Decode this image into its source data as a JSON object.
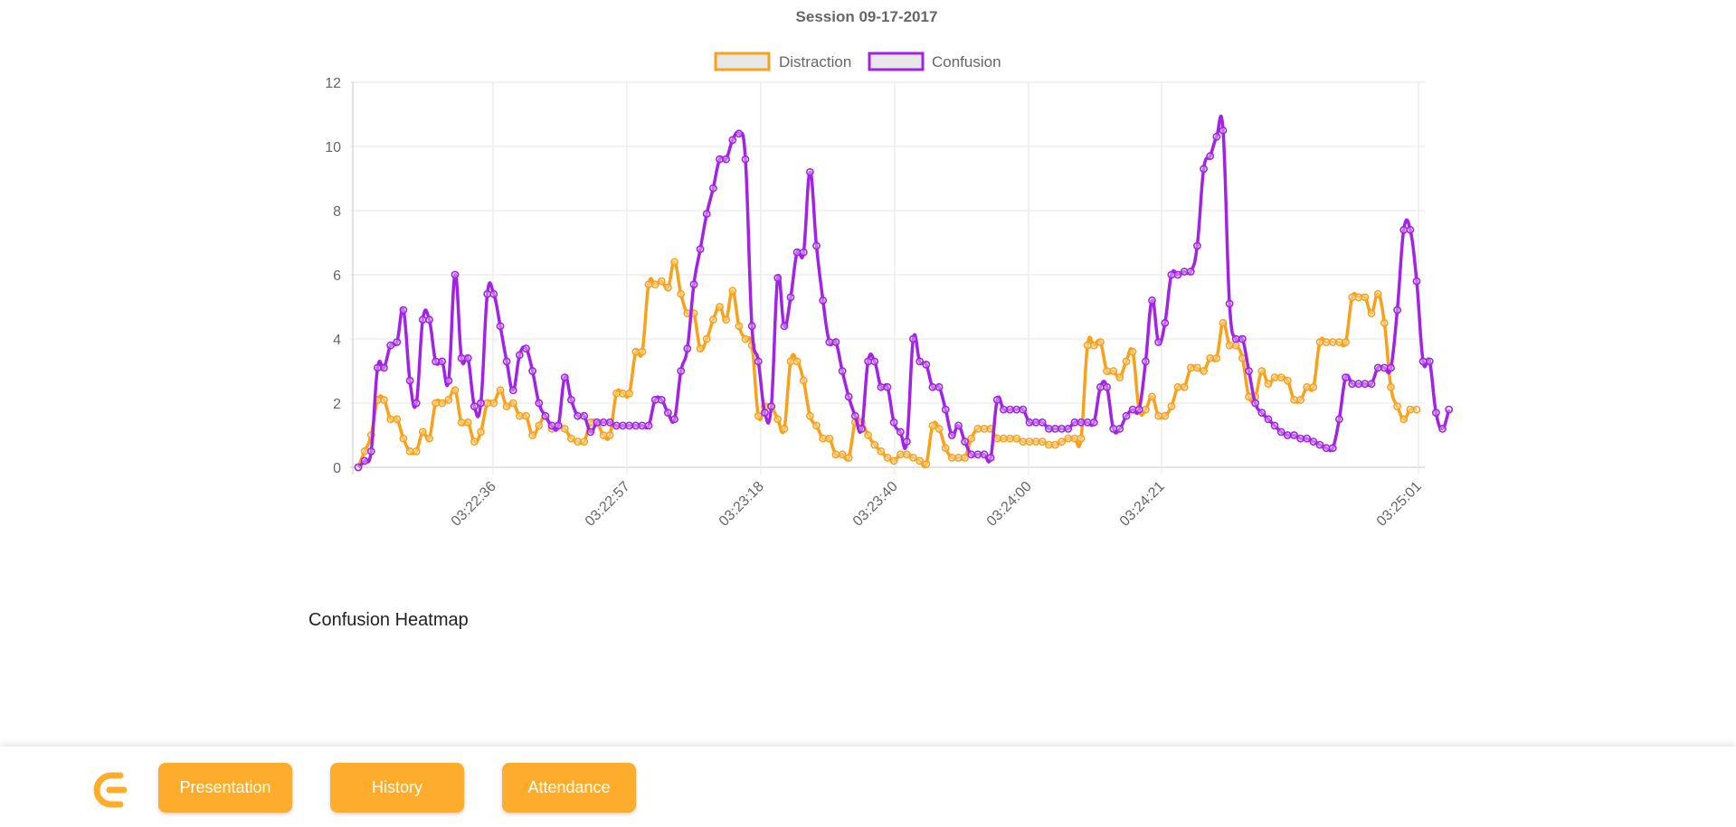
{
  "chart_data": {
    "type": "line",
    "title": "Session 09-17-2017",
    "legend_position": "top",
    "ylim": [
      0,
      12
    ],
    "yticks": [
      "0",
      "2",
      "4",
      "6",
      "8",
      "10",
      "12"
    ],
    "xticks": [
      "03:22:36",
      "03:22:57",
      "03:23:18",
      "03:23:40",
      "03:24:00",
      "03:24:21",
      "03:25:01"
    ],
    "grid": true,
    "series": [
      {
        "name": "Distraction",
        "color": "#f9a11b",
        "values": [
          0,
          0.5,
          1.0,
          2.1,
          2.1,
          1.5,
          1.5,
          0.9,
          0.5,
          0.5,
          1.1,
          0.9,
          2.0,
          2.0,
          2.1,
          2.4,
          1.4,
          1.4,
          0.8,
          1.1,
          2.0,
          2.0,
          2.4,
          1.9,
          2.0,
          1.6,
          1.6,
          1.0,
          1.3,
          1.6,
          1.2,
          1.3,
          1.2,
          0.9,
          0.8,
          0.8,
          1.4,
          1.4,
          1.0,
          1.0,
          2.3,
          2.3,
          2.3,
          3.6,
          3.6,
          5.7,
          5.7,
          5.8,
          5.6,
          6.4,
          5.4,
          4.8,
          4.8,
          3.7,
          4.0,
          4.6,
          5.0,
          4.6,
          5.5,
          4.4,
          4.0,
          3.8,
          1.6,
          1.9,
          1.9,
          1.5,
          1.2,
          3.3,
          3.3,
          2.7,
          1.6,
          1.3,
          0.9,
          0.9,
          0.4,
          0.4,
          0.3,
          1.4,
          1.4,
          1.0,
          0.7,
          0.5,
          0.3,
          0.2,
          0.4,
          0.4,
          0.3,
          0.2,
          0.1,
          1.3,
          1.2,
          0.6,
          0.3,
          0.3,
          0.3,
          0.9,
          1.2,
          1.2,
          1.2,
          0.9,
          0.9,
          0.9,
          0.9,
          0.8,
          0.8,
          0.8,
          0.8,
          0.7,
          0.7,
          0.8,
          0.9,
          0.9,
          0.9,
          3.8,
          3.8,
          3.9,
          3.0,
          3.0,
          2.8,
          3.3,
          3.6,
          1.8,
          1.8,
          2.2,
          1.6,
          1.6,
          1.9,
          2.5,
          2.5,
          3.1,
          3.1,
          3.0,
          3.4,
          3.4,
          4.5,
          3.8,
          3.8,
          3.4,
          2.2,
          2.2,
          3.0,
          2.6,
          2.8,
          2.8,
          2.7,
          2.1,
          2.1,
          2.5,
          2.5,
          3.9,
          3.9,
          3.9,
          3.9,
          3.9,
          5.3,
          5.3,
          5.3,
          4.8,
          5.4,
          4.5,
          2.5,
          1.9,
          1.5,
          1.8,
          1.8
        ]
      },
      {
        "name": "Confusion",
        "color": "#a023e6",
        "values": [
          0,
          0.2,
          0.5,
          3.1,
          3.1,
          3.8,
          3.9,
          4.9,
          2.7,
          2.0,
          4.6,
          4.6,
          3.3,
          3.3,
          2.7,
          6.0,
          3.4,
          3.4,
          1.9,
          2.0,
          5.4,
          5.4,
          4.4,
          3.3,
          2.4,
          3.5,
          3.7,
          3.0,
          2.0,
          1.6,
          1.3,
          1.3,
          2.8,
          2.1,
          1.6,
          1.6,
          1.1,
          1.4,
          1.4,
          1.4,
          1.3,
          1.3,
          1.3,
          1.3,
          1.3,
          1.3,
          2.1,
          2.1,
          1.7,
          1.5,
          3.0,
          3.7,
          5.7,
          6.8,
          7.9,
          8.7,
          9.6,
          9.6,
          10.2,
          10.4,
          9.6,
          4.4,
          3.3,
          1.7,
          1.9,
          5.9,
          4.4,
          5.3,
          6.7,
          6.7,
          9.2,
          6.9,
          5.2,
          3.9,
          3.9,
          3.0,
          2.2,
          1.6,
          1.2,
          3.3,
          3.3,
          2.5,
          2.5,
          1.4,
          1.1,
          0.8,
          4.0,
          3.3,
          3.2,
          2.5,
          2.5,
          1.8,
          1.0,
          1.3,
          0.8,
          0.4,
          0.4,
          0.4,
          0.3,
          2.1,
          1.8,
          1.8,
          1.8,
          1.8,
          1.4,
          1.4,
          1.4,
          1.2,
          1.2,
          1.2,
          1.2,
          1.4,
          1.4,
          1.4,
          1.4,
          2.5,
          2.5,
          1.2,
          1.2,
          1.6,
          1.8,
          1.8,
          3.3,
          5.2,
          3.9,
          4.5,
          6.0,
          6.0,
          6.1,
          6.1,
          6.9,
          9.3,
          9.7,
          10.3,
          10.5,
          5.1,
          4.0,
          4.0,
          3.0,
          2.0,
          1.7,
          1.5,
          1.3,
          1.1,
          1.0,
          1.0,
          0.9,
          0.9,
          0.8,
          0.7,
          0.6,
          0.6,
          1.5,
          2.8,
          2.6,
          2.6,
          2.6,
          2.6,
          3.1,
          3.1,
          3.1,
          4.9,
          7.4,
          7.4,
          5.8,
          3.3,
          3.3,
          1.7,
          1.2,
          1.8
        ]
      }
    ]
  },
  "sections": {
    "heatmap_heading": "Confusion Heatmap"
  },
  "nav": {
    "logo_icon": "logo-e-icon",
    "buttons": {
      "presentation": "Presentation",
      "history": "History",
      "attendance": "Attendance"
    },
    "accent_color": "#fdad2b"
  }
}
